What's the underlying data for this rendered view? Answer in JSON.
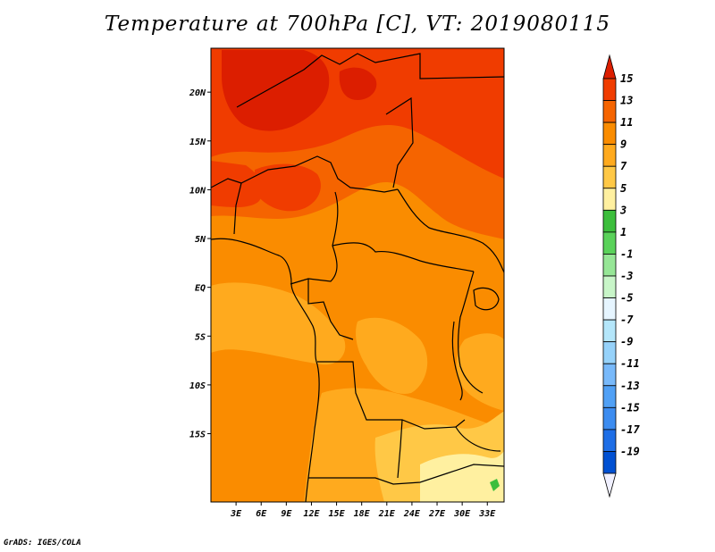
{
  "title": "Temperature at 700hPa [C], VT: 2019080115",
  "footer": "GrADS: IGES/COLA",
  "map": {
    "lon_range": [
      0,
      35
    ],
    "lat_range": [
      -22,
      24.5
    ],
    "lat_ticks": [
      {
        "value": 20,
        "label": "20N"
      },
      {
        "value": 15,
        "label": "15N"
      },
      {
        "value": 10,
        "label": "10N"
      },
      {
        "value": 5,
        "label": "5N"
      },
      {
        "value": 0,
        "label": "EQ"
      },
      {
        "value": -5,
        "label": "5S"
      },
      {
        "value": -10,
        "label": "10S"
      },
      {
        "value": -15,
        "label": "15S"
      }
    ],
    "lon_ticks": [
      {
        "value": 3,
        "label": "3E"
      },
      {
        "value": 6,
        "label": "6E"
      },
      {
        "value": 9,
        "label": "9E"
      },
      {
        "value": 12,
        "label": "12E"
      },
      {
        "value": 15,
        "label": "15E"
      },
      {
        "value": 18,
        "label": "18E"
      },
      {
        "value": 21,
        "label": "21E"
      },
      {
        "value": 24,
        "label": "24E"
      },
      {
        "value": 27,
        "label": "27E"
      },
      {
        "value": 30,
        "label": "30E"
      },
      {
        "value": 33,
        "label": "33E"
      }
    ]
  },
  "colorbar": {
    "labels": [
      "15",
      "13",
      "11",
      "9",
      "7",
      "5",
      "3",
      "1",
      "-1",
      "-3",
      "-5",
      "-7",
      "-9",
      "-11",
      "-13",
      "-15",
      "-17",
      "-19"
    ],
    "colors": [
      "#dc1e00",
      "#f03c00",
      "#f56400",
      "#fa8c00",
      "#ffaa1e",
      "#ffc846",
      "#fff0a0",
      "#3cbe3c",
      "#5ad25a",
      "#96e696",
      "#c8f5c8",
      "#e6f5ff",
      "#b4e6fa",
      "#96d2fa",
      "#78b9fa",
      "#50a0f5",
      "#3c8cf0",
      "#1e6ee6",
      "#0050d2",
      "#0a28a0",
      "#f0f0ff"
    ]
  },
  "fill_colors": {
    "t15": "#dc1e00",
    "t13": "#f03c00",
    "t11": "#f56400",
    "t9": "#fa8c00",
    "t7": "#ffaa1e",
    "t5": "#ffc846",
    "t3": "#fff0a0",
    "t1": "#3cbe3c"
  }
}
